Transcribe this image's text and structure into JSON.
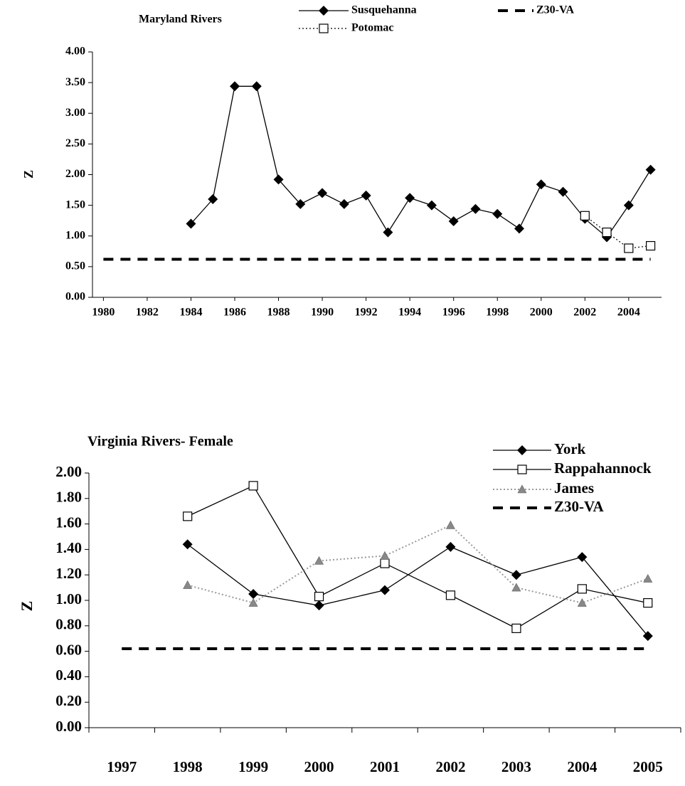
{
  "chart_data": [
    {
      "type": "line",
      "title": "Maryland Rivers",
      "y_label": "Z",
      "x": [
        1980,
        1981,
        1982,
        1983,
        1984,
        1985,
        1986,
        1987,
        1988,
        1989,
        1990,
        1991,
        1992,
        1993,
        1994,
        1995,
        1996,
        1997,
        1998,
        1999,
        2000,
        2001,
        2002,
        2003,
        2004,
        2005
      ],
      "series": [
        {
          "name": "Susquehanna",
          "color": "#000000",
          "marker": "diamond",
          "line": "solid",
          "values": [
            null,
            null,
            null,
            null,
            1.2,
            1.6,
            3.44,
            3.44,
            1.92,
            1.52,
            1.7,
            1.52,
            1.66,
            1.06,
            1.62,
            1.5,
            1.24,
            1.44,
            1.36,
            1.12,
            1.84,
            1.72,
            1.28,
            0.98,
            1.5,
            2.08
          ]
        },
        {
          "name": "Potomac",
          "color": "#000000",
          "marker": "square",
          "line": "dotted",
          "values": [
            null,
            null,
            null,
            null,
            null,
            null,
            null,
            null,
            null,
            null,
            null,
            null,
            null,
            null,
            null,
            null,
            null,
            null,
            null,
            null,
            null,
            null,
            1.33,
            1.06,
            0.8,
            0.84
          ]
        },
        {
          "name": "Z30-VA",
          "color": "#000000",
          "marker": "none",
          "line": "dashed",
          "values": [
            0.62,
            0.62,
            0.62,
            0.62,
            0.62,
            0.62,
            0.62,
            0.62,
            0.62,
            0.62,
            0.62,
            0.62,
            0.62,
            0.62,
            0.62,
            0.62,
            0.62,
            0.62,
            0.62,
            0.62,
            0.62,
            0.62,
            0.62,
            0.62,
            0.62,
            0.62
          ]
        }
      ],
      "xlim": [
        1979.5,
        2005.5
      ],
      "xticks": [
        1980,
        1982,
        1984,
        1986,
        1988,
        1990,
        1992,
        1994,
        1996,
        1998,
        2000,
        2002,
        2004
      ],
      "ylim": [
        0,
        4
      ],
      "yticks": [
        {
          "value": 0,
          "label": "0.00"
        },
        {
          "value": 0.5,
          "label": "0.50"
        },
        {
          "value": 1,
          "label": "1.00"
        },
        {
          "value": 1.5,
          "label": "1.50"
        },
        {
          "value": 2,
          "label": "2.00"
        },
        {
          "value": 2.5,
          "label": "2.50"
        },
        {
          "value": 3,
          "label": "3.00"
        },
        {
          "value": 3.5,
          "label": "3.50"
        },
        {
          "value": 4,
          "label": "4.00"
        }
      ],
      "grid": false
    },
    {
      "type": "line",
      "title": "Virginia Rivers- Female",
      "y_label": "Z",
      "categories": [
        "1997",
        "1998",
        "1999",
        "2000",
        "2001",
        "2002",
        "2003",
        "2004",
        "2005"
      ],
      "series": [
        {
          "name": "York",
          "color": "#000000",
          "marker": "diamond",
          "line": "solid",
          "values": [
            null,
            1.44,
            1.05,
            0.96,
            1.08,
            1.42,
            1.2,
            1.34,
            0.72
          ]
        },
        {
          "name": "Rappahannock",
          "color": "#000000",
          "marker": "square",
          "line": "solid",
          "values": [
            null,
            1.66,
            1.9,
            1.03,
            1.29,
            1.04,
            0.78,
            1.09,
            0.98
          ]
        },
        {
          "name": "James",
          "color": "#999999",
          "marker": "triangle",
          "line": "dotted",
          "values": [
            null,
            1.12,
            0.98,
            1.31,
            1.35,
            1.59,
            1.1,
            0.98,
            1.17
          ]
        },
        {
          "name": "Z30-VA",
          "color": "#000000",
          "marker": "none",
          "line": "dashed",
          "values": [
            0.62,
            0.62,
            0.62,
            0.62,
            0.62,
            0.62,
            0.62,
            0.62,
            0.62
          ]
        }
      ],
      "ylim": [
        0,
        2
      ],
      "yticks": [
        {
          "value": 0,
          "label": "0.00"
        },
        {
          "value": 0.2,
          "label": "0.20"
        },
        {
          "value": 0.4,
          "label": "0.40"
        },
        {
          "value": 0.6,
          "label": "0.60"
        },
        {
          "value": 0.8,
          "label": "0.80"
        },
        {
          "value": 1,
          "label": "1.00"
        },
        {
          "value": 1.2,
          "label": "1.20"
        },
        {
          "value": 1.4,
          "label": "1.40"
        },
        {
          "value": 1.6,
          "label": "1.60"
        },
        {
          "value": 1.8,
          "label": "1.80"
        },
        {
          "value": 2,
          "label": "2.00"
        }
      ],
      "grid": false
    }
  ]
}
